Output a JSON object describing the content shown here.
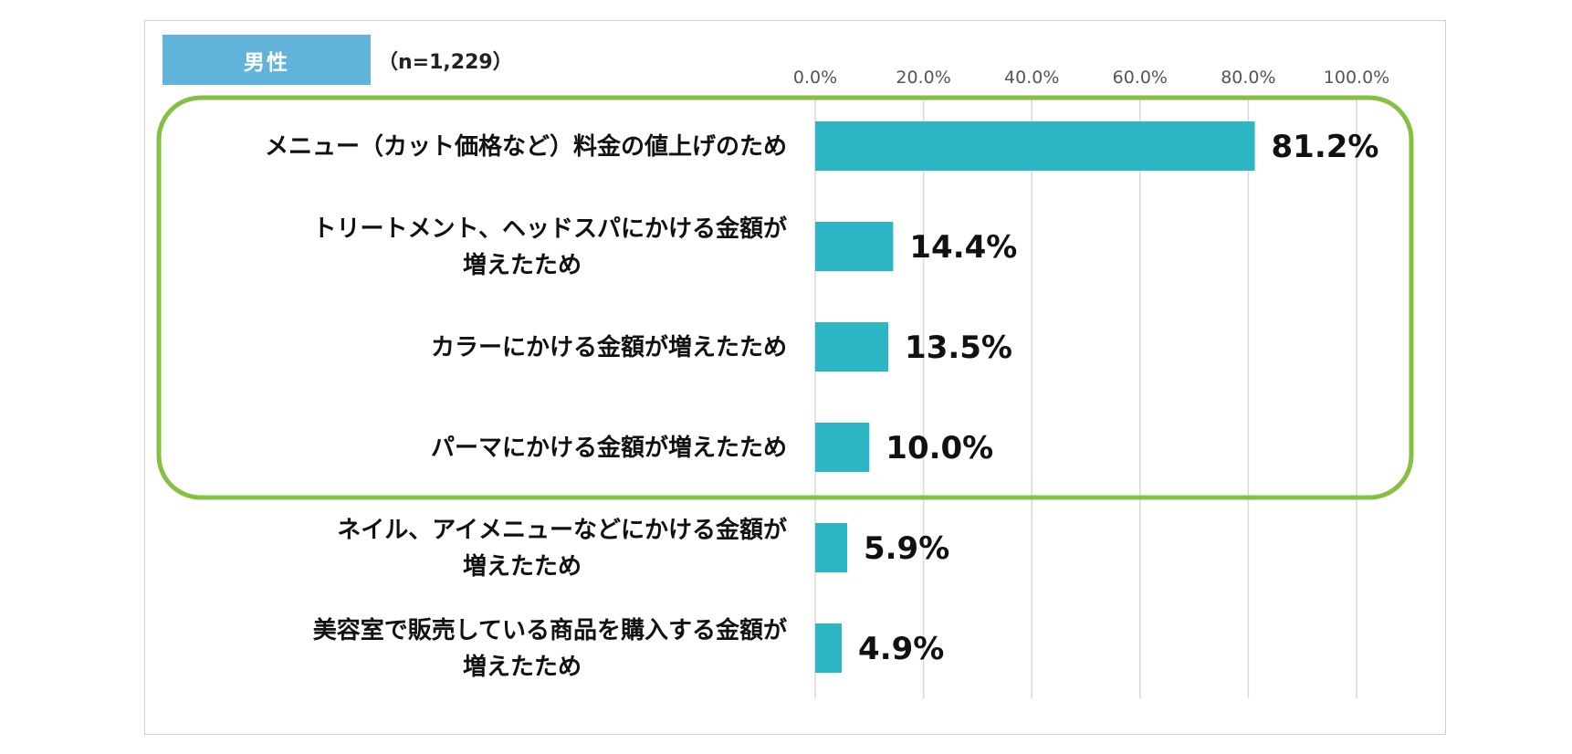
{
  "header": {
    "badge": "男性",
    "sample_size": "（n=1,229）"
  },
  "colors": {
    "bar": "#2db6c6",
    "badge": "#62b3da",
    "highlight_border": "#86c043",
    "grid": "#d9d9d9"
  },
  "chart_data": {
    "type": "bar",
    "orientation": "horizontal",
    "title": "",
    "xlabel": "",
    "ylabel": "",
    "xlim": [
      0,
      100
    ],
    "tick_labels": [
      "0.0%",
      "20.0%",
      "40.0%",
      "60.0%",
      "80.0%",
      "100.0%"
    ],
    "categories": [
      [
        "メニュー（カット価格など）料金の値上げのため"
      ],
      [
        "トリートメント、ヘッドスパにかける金額が",
        "増えたため"
      ],
      [
        "カラーにかける金額が増えたため"
      ],
      [
        "パーマにかける金額が増えたため"
      ],
      [
        "ネイル、アイメニューなどにかける金額が",
        "増えたため"
      ],
      [
        "美容室で販売している商品を購入する金額が",
        "増えたため"
      ]
    ],
    "values": [
      81.2,
      14.4,
      13.5,
      10.0,
      5.9,
      4.9
    ],
    "value_labels": [
      "81.2%",
      "14.4%",
      "13.5%",
      "10.0%",
      "5.9%",
      "4.9%"
    ],
    "grid": true,
    "highlighted_categories": [
      0,
      1,
      2,
      3
    ]
  }
}
